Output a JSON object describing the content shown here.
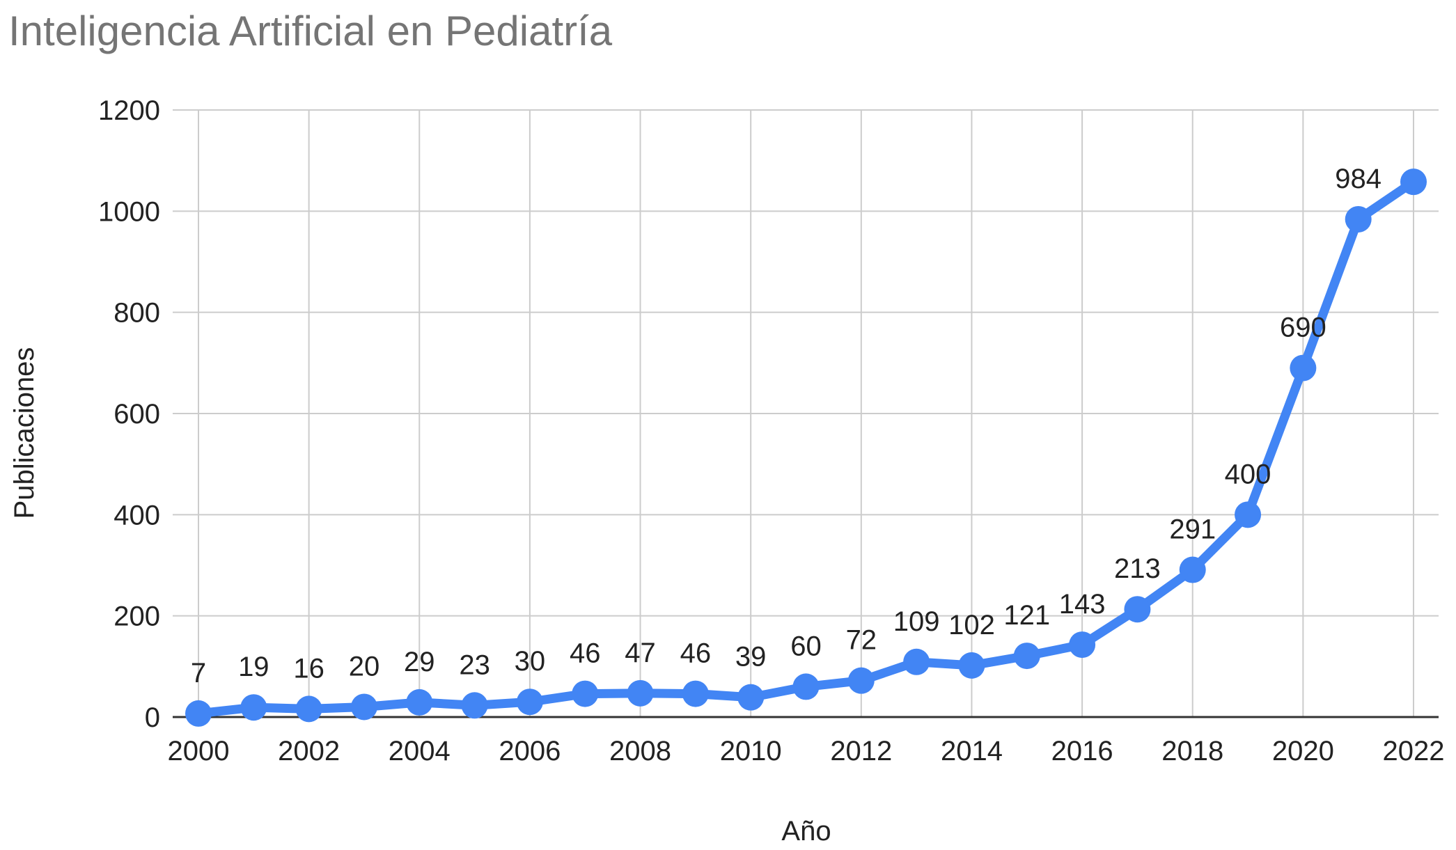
{
  "chart_data": {
    "type": "line",
    "title": "Inteligencia Artificial en Pediatría",
    "xlabel": "Año",
    "ylabel": "Publicaciones",
    "x": [
      2000,
      2001,
      2002,
      2003,
      2004,
      2005,
      2006,
      2007,
      2008,
      2009,
      2010,
      2011,
      2012,
      2013,
      2014,
      2015,
      2016,
      2017,
      2018,
      2019,
      2020,
      2021,
      2022
    ],
    "series": [
      {
        "values": [
          7,
          19,
          16,
          20,
          29,
          23,
          30,
          46,
          47,
          46,
          39,
          60,
          72,
          109,
          102,
          121,
          143,
          213,
          291,
          400,
          690,
          984,
          1058
        ],
        "data_labels": [
          "7",
          "19",
          "16",
          "20",
          "29",
          "23",
          "30",
          "46",
          "47",
          "46",
          "39",
          "60",
          "72",
          "109",
          "102",
          "121",
          "143",
          "213",
          "291",
          "400",
          "690",
          "984",
          ""
        ],
        "color": "#4285f4"
      }
    ],
    "xlim": [
      2000,
      2022
    ],
    "ylim": [
      0,
      1200
    ],
    "x_ticks": [
      "2000",
      "2002",
      "2004",
      "2006",
      "2008",
      "2010",
      "2012",
      "2014",
      "2016",
      "2018",
      "2020",
      "2022"
    ],
    "y_ticks": [
      "0",
      "200",
      "400",
      "600",
      "800",
      "1000",
      "1200"
    ],
    "grid": true,
    "legend": "none"
  }
}
